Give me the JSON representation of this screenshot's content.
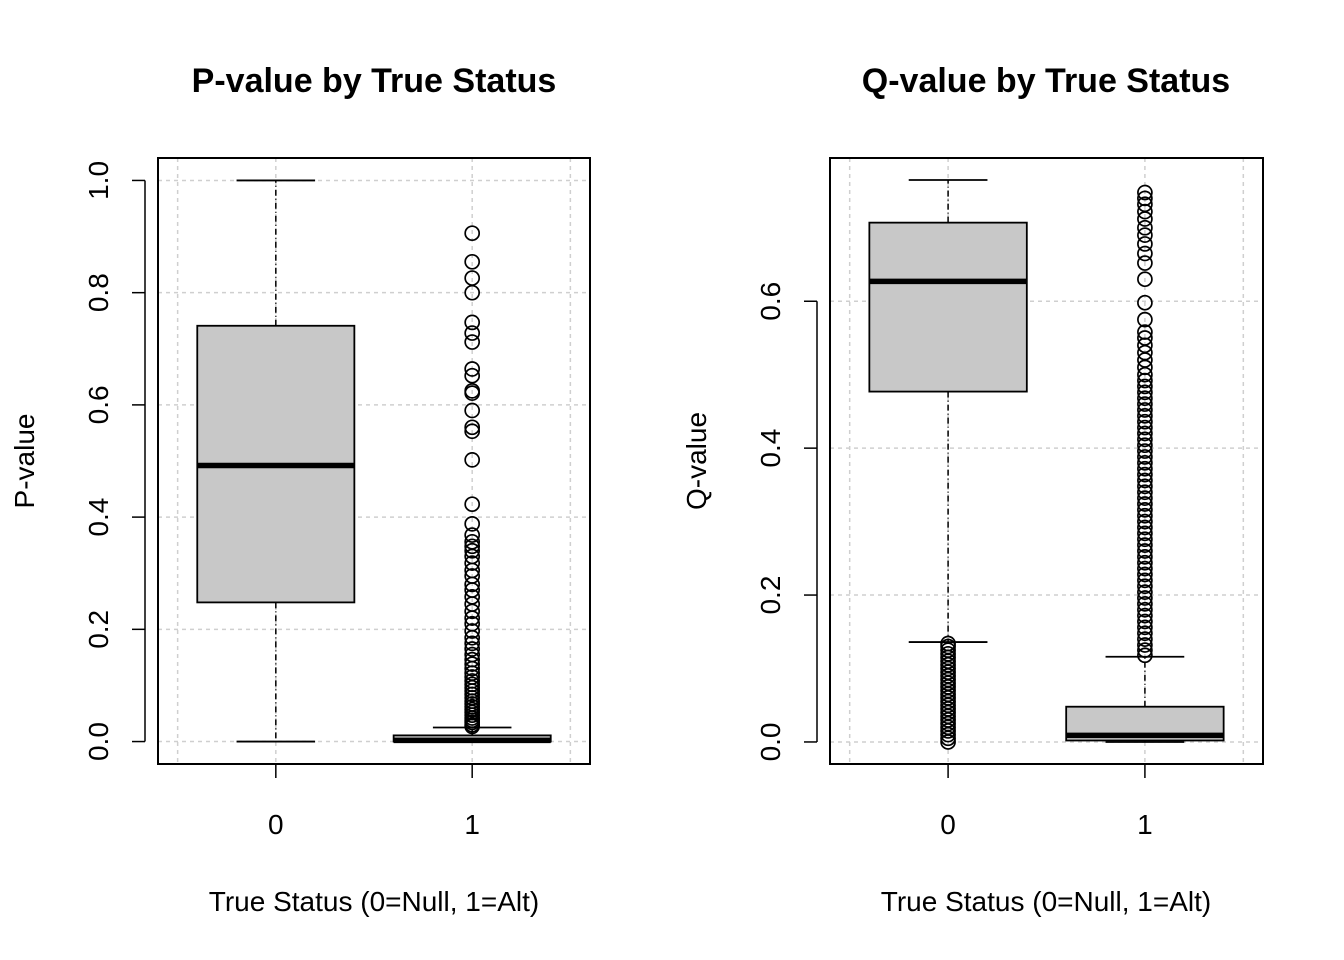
{
  "chart_data": [
    {
      "type": "box",
      "title": "P-value by True Status",
      "xlabel": "True Status (0=Null, 1=Alt)",
      "ylabel": "P-value",
      "categories": [
        "0",
        "1"
      ],
      "yticks": [
        "0.0",
        "0.2",
        "0.4",
        "0.6",
        "0.8",
        "1.0"
      ],
      "ytick_values": [
        0.0,
        0.2,
        0.4,
        0.6,
        0.8,
        1.0
      ],
      "ylim": [
        -0.04,
        1.04
      ],
      "grid": true,
      "box_fill": "#c8c8c8",
      "boxes": [
        {
          "category": "0",
          "whisker_low": 0.0,
          "q1": 0.248,
          "median": 0.492,
          "q3": 0.741,
          "whisker_high": 1.0,
          "outliers": []
        },
        {
          "category": "1",
          "whisker_low": 0.0,
          "q1": 0.0,
          "median": 0.002,
          "q3": 0.011,
          "whisker_high": 0.025,
          "outliers": [
            0.027,
            0.03,
            0.034,
            0.038,
            0.042,
            0.047,
            0.052,
            0.057,
            0.062,
            0.067,
            0.072,
            0.078,
            0.084,
            0.09,
            0.096,
            0.102,
            0.108,
            0.115,
            0.122,
            0.13,
            0.138,
            0.146,
            0.155,
            0.165,
            0.175,
            0.185,
            0.197,
            0.21,
            0.22,
            0.232,
            0.245,
            0.258,
            0.27,
            0.28,
            0.295,
            0.305,
            0.318,
            0.33,
            0.34,
            0.348,
            0.356,
            0.368,
            0.388,
            0.423,
            0.502,
            0.553,
            0.56,
            0.59,
            0.621,
            0.625,
            0.652,
            0.664,
            0.712,
            0.728,
            0.747,
            0.8,
            0.826,
            0.855,
            0.906
          ]
        }
      ]
    },
    {
      "type": "box",
      "title": "Q-value by True Status",
      "xlabel": "True Status (0=Null, 1=Alt)",
      "ylabel": "Q-value",
      "categories": [
        "0",
        "1"
      ],
      "yticks": [
        "0.0",
        "0.2",
        "0.4",
        "0.6"
      ],
      "ytick_values": [
        0.0,
        0.2,
        0.4,
        0.6
      ],
      "ylim": [
        -0.03,
        0.795
      ],
      "grid": true,
      "box_fill": "#c8c8c8",
      "boxes": [
        {
          "category": "0",
          "whisker_low": 0.136,
          "q1": 0.477,
          "median": 0.627,
          "q3": 0.707,
          "whisker_high": 0.765,
          "outliers": [
            0.0,
            0.005,
            0.01,
            0.015,
            0.02,
            0.025,
            0.03,
            0.035,
            0.04,
            0.045,
            0.05,
            0.055,
            0.06,
            0.065,
            0.07,
            0.075,
            0.08,
            0.085,
            0.09,
            0.095,
            0.1,
            0.105,
            0.11,
            0.115,
            0.12,
            0.125,
            0.13,
            0.134
          ]
        },
        {
          "category": "1",
          "whisker_low": 0.0,
          "q1": 0.002,
          "median": 0.009,
          "q3": 0.048,
          "whisker_high": 0.116,
          "outliers": [
            0.118,
            0.125,
            0.132,
            0.14,
            0.148,
            0.156,
            0.164,
            0.172,
            0.18,
            0.188,
            0.196,
            0.204,
            0.212,
            0.22,
            0.228,
            0.236,
            0.244,
            0.252,
            0.26,
            0.268,
            0.276,
            0.284,
            0.292,
            0.3,
            0.308,
            0.316,
            0.324,
            0.332,
            0.34,
            0.348,
            0.356,
            0.364,
            0.372,
            0.38,
            0.388,
            0.396,
            0.404,
            0.412,
            0.42,
            0.428,
            0.436,
            0.444,
            0.452,
            0.46,
            0.468,
            0.476,
            0.484,
            0.492,
            0.5,
            0.51,
            0.52,
            0.53,
            0.54,
            0.55,
            0.558,
            0.575,
            0.598,
            0.63,
            0.652,
            0.665,
            0.678,
            0.69,
            0.7,
            0.712,
            0.722,
            0.732,
            0.74,
            0.748
          ]
        }
      ]
    }
  ]
}
